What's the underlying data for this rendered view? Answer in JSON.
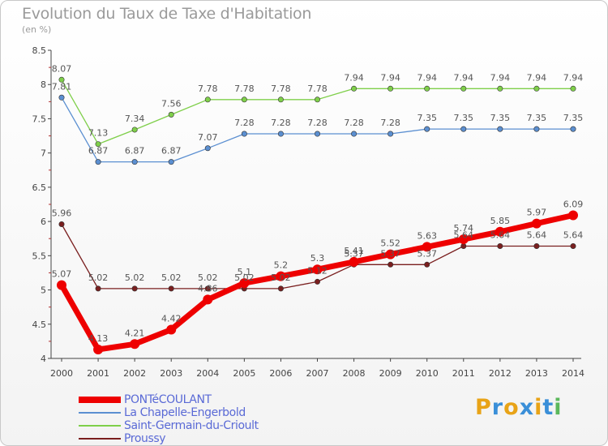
{
  "title": "Evolution du Taux de Taxe d'Habitation",
  "unit_label": "(en %)",
  "logo": {
    "text": "Proxiti",
    "colors": [
      "#e8a317",
      "#3a8fd8",
      "#e8a317",
      "#3a8fd8",
      "#e8a317",
      "#3a8fd8",
      "#5cb85c"
    ]
  },
  "chart_data": {
    "type": "line",
    "x": [
      2000,
      2001,
      2002,
      2003,
      2004,
      2005,
      2006,
      2007,
      2008,
      2009,
      2010,
      2011,
      2012,
      2013,
      2014
    ],
    "ylim": [
      4,
      8.5
    ],
    "yticks": [
      4,
      4.5,
      5,
      5.5,
      6,
      6.5,
      7,
      7.5,
      8,
      8.5
    ],
    "grid": false,
    "legend_position": "bottom-left",
    "series": [
      {
        "name": "Proussy",
        "color": "#7a1f1f",
        "values": [
          5.96,
          5.02,
          5.02,
          5.02,
          5.02,
          5.02,
          5.02,
          5.12,
          5.37,
          5.37,
          5.37,
          5.64,
          5.64,
          5.64,
          5.64
        ],
        "labels": [
          "5.96",
          "5.02",
          "5.02",
          "5.02",
          "5.02",
          "5.02",
          "5.02",
          "5.12",
          "5.37",
          "5.37",
          "5.37",
          "5.64",
          "5.64",
          "5.64",
          "5.64"
        ]
      },
      {
        "name": "La Chapelle-Engerbold",
        "color": "#5b8fd1",
        "values": [
          7.81,
          6.87,
          6.87,
          6.87,
          7.07,
          7.28,
          7.28,
          7.28,
          7.28,
          7.28,
          7.35,
          7.35,
          7.35,
          7.35,
          7.35
        ],
        "labels": [
          "7.81",
          "6.87",
          "6.87",
          "6.87",
          "7.07",
          "7.28",
          "7.28",
          "7.28",
          "7.28",
          "7.28",
          "7.35",
          "7.35",
          "7.35",
          "7.35",
          "7.35"
        ]
      },
      {
        "name": "Saint-Germain-du-Crioult",
        "color": "#7fcf4a",
        "values": [
          8.07,
          7.13,
          7.34,
          7.56,
          7.78,
          7.78,
          7.78,
          7.78,
          7.94,
          7.94,
          7.94,
          7.94,
          7.94,
          7.94,
          7.94
        ],
        "labels": [
          "8.07",
          "7.13",
          "7.34",
          "7.56",
          "7.78",
          "7.78",
          "7.78",
          "7.78",
          "7.94",
          "7.94",
          "7.94",
          "7.94",
          "7.94",
          "7.94",
          "7.94"
        ]
      },
      {
        "name": "PONTéCOULANT",
        "color": "#ee0000",
        "values": [
          5.07,
          4.13,
          4.21,
          4.42,
          4.86,
          5.1,
          5.2,
          5.3,
          5.41,
          5.52,
          5.63,
          5.74,
          5.85,
          5.97,
          6.09
        ],
        "labels": [
          "5.07",
          "4.13",
          "4.21",
          "4.42",
          "4.86",
          "5.1",
          "5.2",
          "5.3",
          "5.41",
          "5.52",
          "5.63",
          "5.74",
          "5.85",
          "5.97",
          "6.09"
        ]
      }
    ],
    "legend_order": [
      "PONTéCOULANT",
      "La Chapelle-Engerbold",
      "Saint-Germain-du-Crioult",
      "Proussy"
    ]
  }
}
